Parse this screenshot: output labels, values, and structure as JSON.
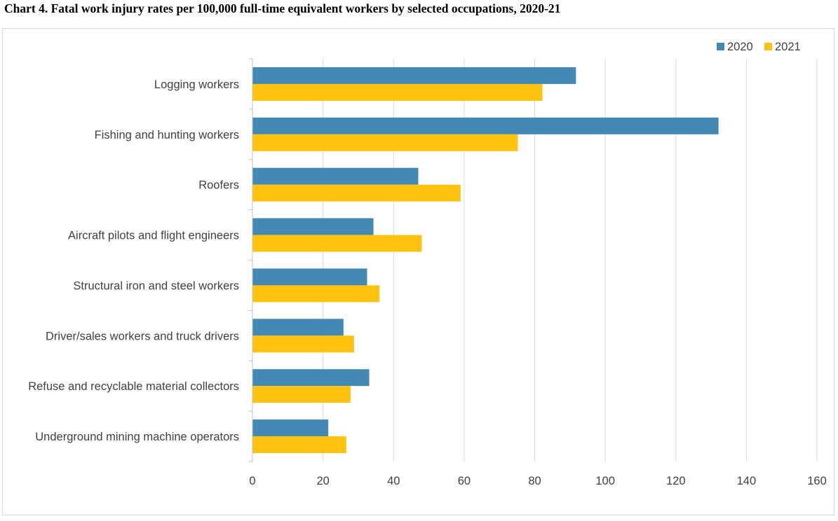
{
  "chart_data": {
    "type": "bar",
    "orientation": "horizontal",
    "title": "Chart 4. Fatal work injury rates per 100,000 full-time equivalent workers by selected occupations, 2020-21",
    "categories": [
      "Logging workers",
      "Fishing and hunting workers",
      "Roofers",
      "Aircraft pilots and flight engineers",
      "Structural iron and steel workers",
      "Driver/sales workers and truck drivers",
      "Refuse and recyclable material collectors",
      "Underground mining machine operators"
    ],
    "series": [
      {
        "name": "2020",
        "color": "#4389b4",
        "values": [
          91.7,
          132.1,
          47.0,
          34.3,
          32.5,
          25.8,
          33.1,
          21.5
        ]
      },
      {
        "name": "2021",
        "color": "#ffc20e",
        "values": [
          82.2,
          75.2,
          59.0,
          48.0,
          36.0,
          28.8,
          27.8,
          26.6
        ]
      }
    ],
    "xlim": [
      0,
      160
    ],
    "xticks": [
      0,
      20,
      40,
      60,
      80,
      100,
      120,
      140,
      160
    ],
    "xlabel": "",
    "ylabel": "",
    "grid": true,
    "legend": "top-right"
  }
}
